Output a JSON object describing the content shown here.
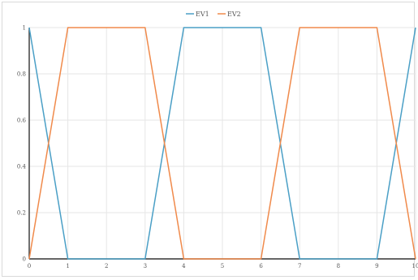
{
  "chart_data": {
    "type": "line",
    "title": "",
    "xlabel": "",
    "ylabel": "",
    "xlim": [
      0,
      10
    ],
    "ylim": [
      0,
      1
    ],
    "x_ticks": [
      "0",
      "1",
      "2",
      "3",
      "4",
      "5",
      "6",
      "7",
      "8",
      "9",
      "10"
    ],
    "y_ticks": [
      "0",
      "0.2",
      "0.4",
      "0.6",
      "0.8",
      "1"
    ],
    "grid": true,
    "legend_position": "top-center",
    "series": [
      {
        "name": "EV1",
        "color": "#4a9fc6",
        "points": [
          [
            0,
            1
          ],
          [
            1,
            0
          ],
          [
            3,
            0
          ],
          [
            4,
            1
          ],
          [
            6,
            1
          ],
          [
            7,
            0
          ],
          [
            9,
            0
          ],
          [
            10,
            1
          ]
        ]
      },
      {
        "name": "EV2",
        "color": "#f08a4b",
        "points": [
          [
            0,
            0
          ],
          [
            1,
            1
          ],
          [
            3,
            1
          ],
          [
            4,
            0
          ],
          [
            6,
            0
          ],
          [
            7,
            1
          ],
          [
            9,
            1
          ],
          [
            10,
            0
          ]
        ]
      }
    ]
  }
}
